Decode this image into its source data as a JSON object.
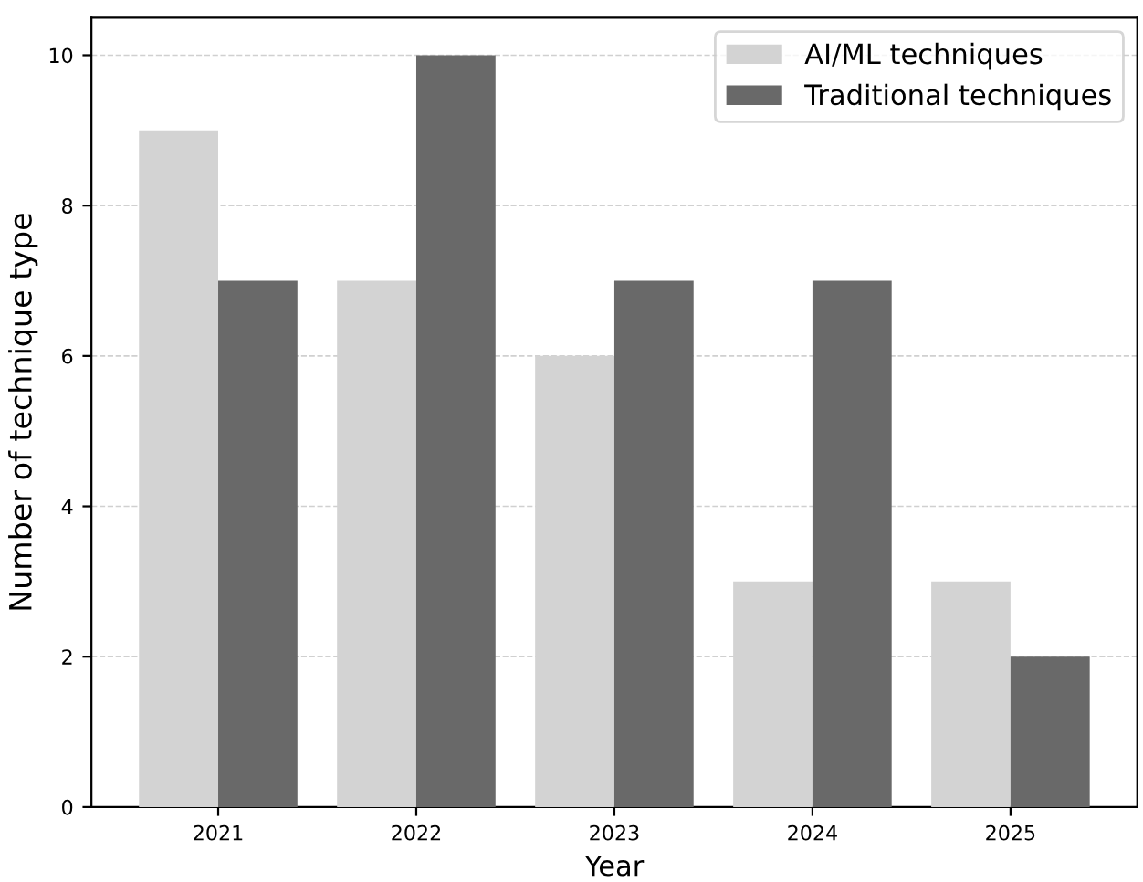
{
  "chart_data": {
    "type": "bar",
    "xlabel": "Year",
    "ylabel": "Number of technique type",
    "categories": [
      "2021",
      "2022",
      "2023",
      "2024",
      "2025"
    ],
    "series": [
      {
        "name": "AI/ML techniques",
        "color": "#d3d3d3",
        "values": [
          9,
          7,
          6,
          3,
          3
        ]
      },
      {
        "name": "Traditional techniques",
        "color": "#696969",
        "values": [
          7,
          10,
          7,
          7,
          2
        ]
      }
    ],
    "ylim": [
      0,
      10.5
    ],
    "yticks": [
      0,
      2,
      4,
      6,
      8,
      10
    ],
    "grid": "y",
    "legend": "top right"
  }
}
